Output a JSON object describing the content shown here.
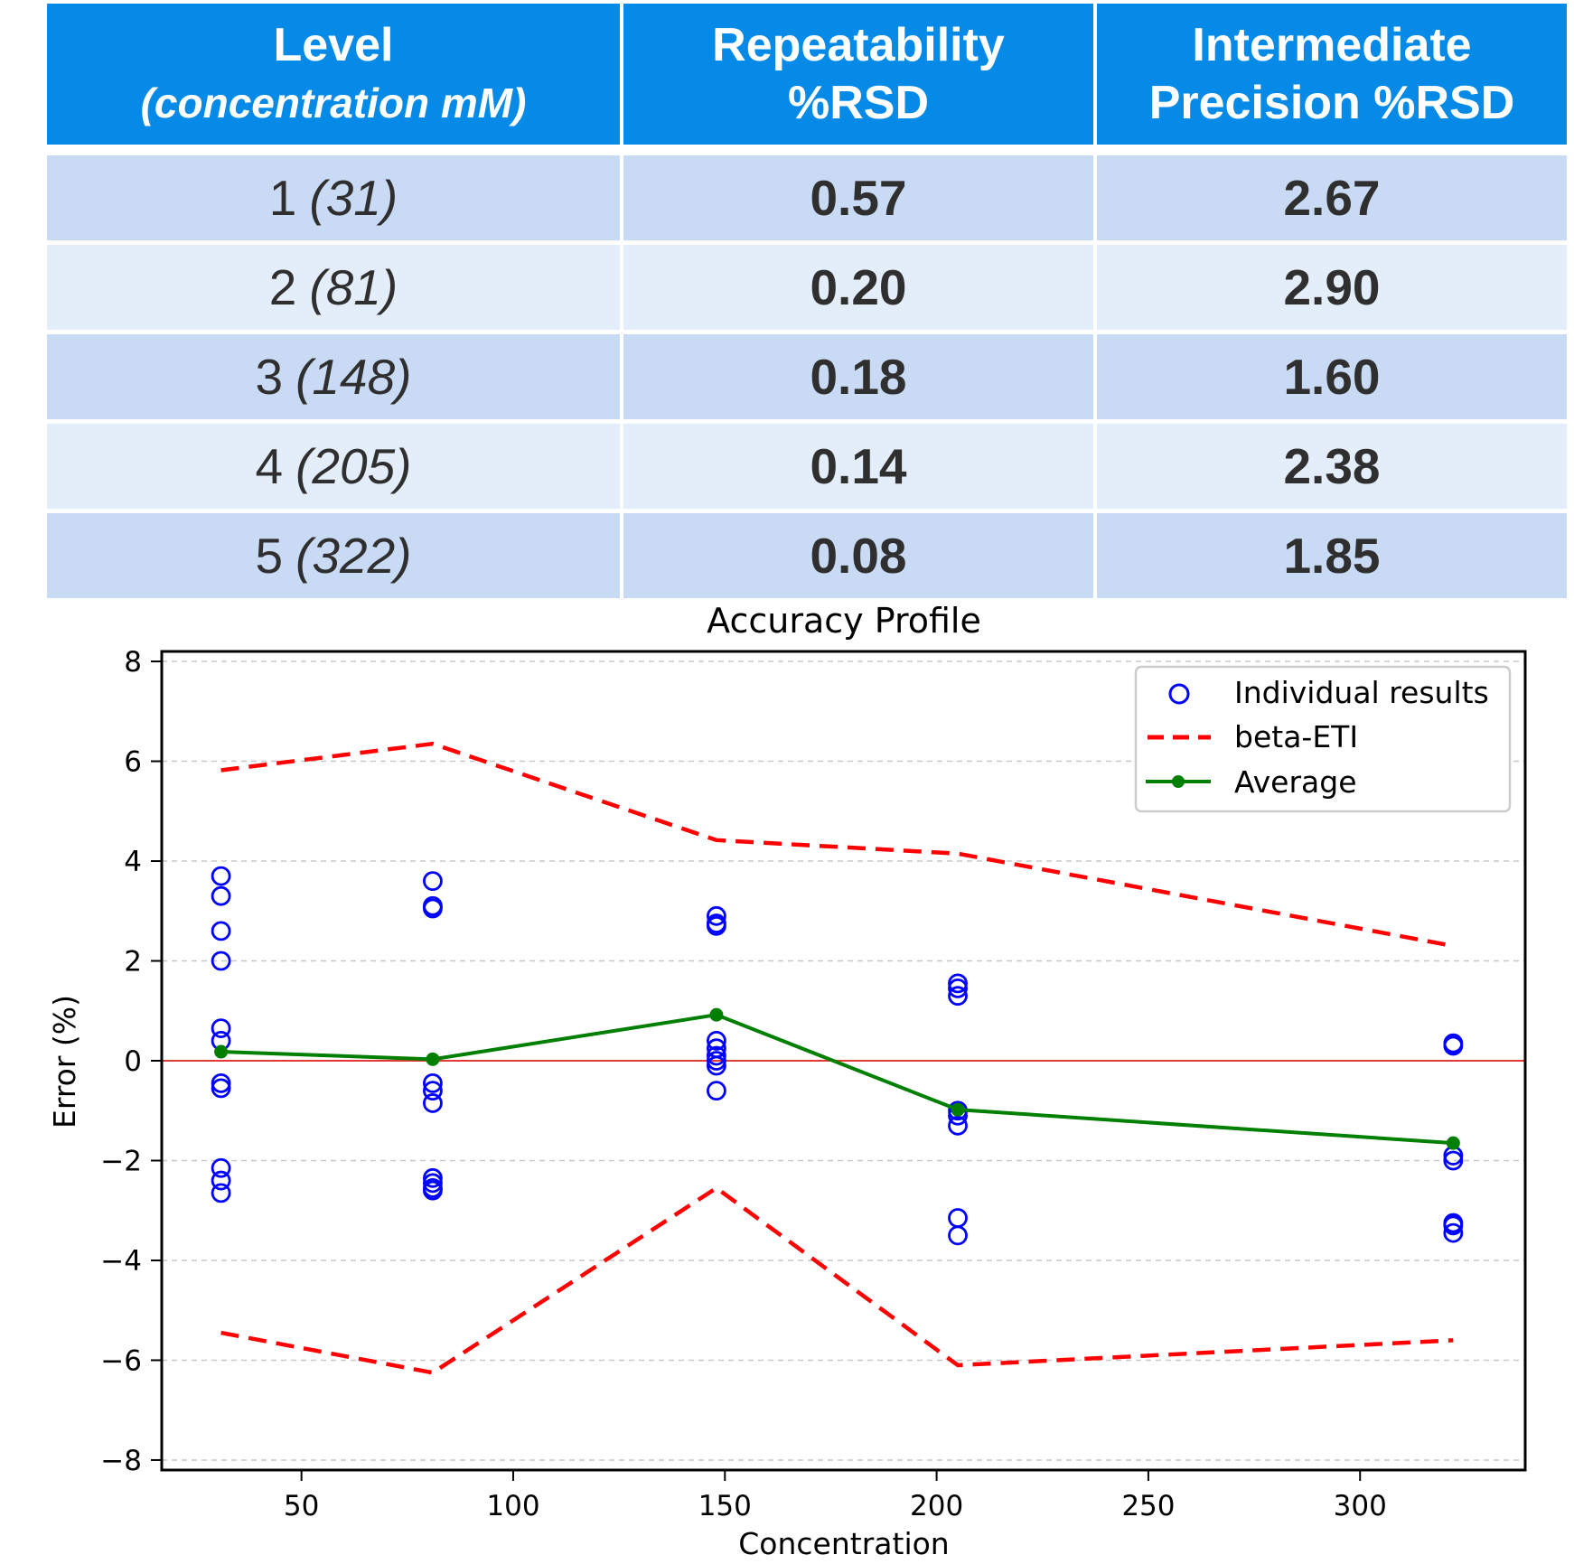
{
  "table": {
    "headers": [
      {
        "line1": "Level",
        "line2": "(concentration mM)"
      },
      {
        "line1": "Repeatability",
        "line2": "%RSD"
      },
      {
        "line1": "Intermediate",
        "line2": "Precision  %RSD"
      }
    ],
    "rows": [
      {
        "level": "1",
        "conc": "(31)",
        "repeatability": "0.57",
        "intermediate": "2.67"
      },
      {
        "level": "2",
        "conc": "(81)",
        "repeatability": "0.20",
        "intermediate": "2.90"
      },
      {
        "level": "3",
        "conc": "(148)",
        "repeatability": "0.18",
        "intermediate": "1.60"
      },
      {
        "level": "4",
        "conc": "(205)",
        "repeatability": "0.14",
        "intermediate": "2.38"
      },
      {
        "level": "5",
        "conc": "(322)",
        "repeatability": "0.08",
        "intermediate": "1.85"
      }
    ]
  },
  "chart_data": {
    "type": "scatter",
    "title": "Accuracy Profile",
    "xlabel": "Concentration",
    "ylabel": "Error (%)",
    "xlim": [
      17,
      339
    ],
    "ylim": [
      -8.2,
      8.2
    ],
    "xticks": [
      50,
      100,
      150,
      200,
      250,
      300
    ],
    "yticks": [
      8,
      6,
      4,
      2,
      0,
      -2,
      -4,
      -6,
      -8
    ],
    "ytick_labels": [
      "8",
      "6",
      "4",
      "2",
      "0",
      "−2",
      "−4",
      "−6",
      "−8"
    ],
    "grid": "horizontal dashed",
    "legend_position": "top-right",
    "reference_line": {
      "y": 0,
      "color": "#e53935"
    },
    "series": [
      {
        "name": "Individual results",
        "kind": "scatter-open-circle",
        "color": "#0000ff",
        "points": [
          [
            31,
            3.7
          ],
          [
            31,
            3.3
          ],
          [
            31,
            2.6
          ],
          [
            31,
            2.0
          ],
          [
            31,
            0.65
          ],
          [
            31,
            0.4
          ],
          [
            31,
            -0.45
          ],
          [
            31,
            -0.55
          ],
          [
            31,
            -2.15
          ],
          [
            31,
            -2.4
          ],
          [
            31,
            -2.65
          ],
          [
            81,
            3.6
          ],
          [
            81,
            3.05
          ],
          [
            81,
            3.1
          ],
          [
            81,
            -0.45
          ],
          [
            81,
            -0.6
          ],
          [
            81,
            -0.85
          ],
          [
            81,
            -2.35
          ],
          [
            81,
            -2.45
          ],
          [
            81,
            -2.55
          ],
          [
            81,
            -2.6
          ],
          [
            148,
            2.9
          ],
          [
            148,
            2.75
          ],
          [
            148,
            2.7
          ],
          [
            148,
            0.4
          ],
          [
            148,
            0.25
          ],
          [
            148,
            0.1
          ],
          [
            148,
            0.0
          ],
          [
            148,
            -0.1
          ],
          [
            148,
            -0.6
          ],
          [
            205,
            1.55
          ],
          [
            205,
            1.45
          ],
          [
            205,
            1.3
          ],
          [
            205,
            -1.0
          ],
          [
            205,
            -1.1
          ],
          [
            205,
            -1.3
          ],
          [
            205,
            -3.15
          ],
          [
            205,
            -3.5
          ],
          [
            322,
            0.35
          ],
          [
            322,
            0.3
          ],
          [
            322,
            -1.9
          ],
          [
            322,
            -2.0
          ],
          [
            322,
            -3.25
          ],
          [
            322,
            -3.3
          ],
          [
            322,
            -3.45
          ]
        ]
      },
      {
        "name": "beta-ETI",
        "kind": "dashed-line",
        "color": "#ff0000",
        "upper": [
          [
            31,
            5.82
          ],
          [
            81,
            6.35
          ],
          [
            148,
            4.42
          ],
          [
            205,
            4.15
          ],
          [
            322,
            2.3
          ]
        ],
        "lower": [
          [
            31,
            -5.45
          ],
          [
            81,
            -6.25
          ],
          [
            148,
            -2.55
          ],
          [
            205,
            -6.1
          ],
          [
            322,
            -5.6
          ]
        ]
      },
      {
        "name": "Average",
        "kind": "line-with-markers",
        "color": "#007f00",
        "points": [
          [
            31,
            0.18
          ],
          [
            81,
            0.03
          ],
          [
            148,
            0.92
          ],
          [
            205,
            -0.98
          ],
          [
            322,
            -1.65
          ]
        ]
      }
    ]
  }
}
